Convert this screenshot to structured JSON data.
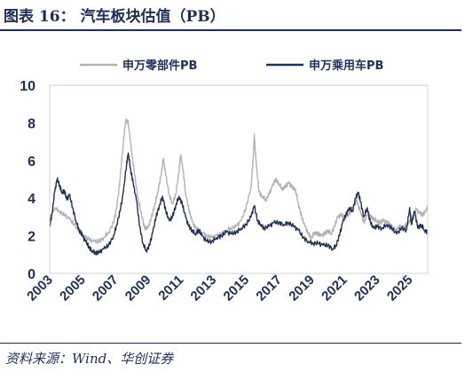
{
  "header": {
    "title": "图表 16：  汽车板块估值（PB）"
  },
  "footer": {
    "source": "资料来源：Wind、华创证券"
  },
  "colors": {
    "navy": "#1f2f57",
    "gray": "#b2b2b2"
  },
  "chart_data": {
    "type": "line",
    "ylim": [
      0,
      10
    ],
    "yticks": [
      "0",
      "2",
      "4",
      "6",
      "8",
      "10"
    ],
    "xlim": [
      2003,
      2026.1
    ],
    "xticks": [
      "2003",
      "2005",
      "2007",
      "2009",
      "2011",
      "2013",
      "2015",
      "2017",
      "2019",
      "2021",
      "2023",
      "2025"
    ],
    "legend_position": "top",
    "grid": false,
    "series": [
      {
        "name": "申万零部件PB",
        "color": "#b2b2b2",
        "points": [
          [
            2003.0,
            2.9
          ],
          [
            2003.3,
            3.5
          ],
          [
            2003.6,
            3.3
          ],
          [
            2003.9,
            3.1
          ],
          [
            2004.2,
            2.9
          ],
          [
            2004.5,
            2.6
          ],
          [
            2004.8,
            2.3
          ],
          [
            2005.1,
            2.0
          ],
          [
            2005.4,
            1.8
          ],
          [
            2005.7,
            1.7
          ],
          [
            2006.0,
            1.7
          ],
          [
            2006.3,
            1.9
          ],
          [
            2006.6,
            2.2
          ],
          [
            2006.9,
            2.7
          ],
          [
            2007.1,
            3.5
          ],
          [
            2007.3,
            5.0
          ],
          [
            2007.5,
            7.0
          ],
          [
            2007.65,
            8.2
          ],
          [
            2007.8,
            8.0
          ],
          [
            2008.0,
            6.5
          ],
          [
            2008.2,
            5.2
          ],
          [
            2008.4,
            4.0
          ],
          [
            2008.6,
            3.2
          ],
          [
            2008.8,
            2.4
          ],
          [
            2009.0,
            2.4
          ],
          [
            2009.2,
            2.9
          ],
          [
            2009.4,
            3.6
          ],
          [
            2009.6,
            4.3
          ],
          [
            2009.8,
            5.2
          ],
          [
            2009.95,
            6.1
          ],
          [
            2010.1,
            5.2
          ],
          [
            2010.3,
            4.2
          ],
          [
            2010.5,
            3.7
          ],
          [
            2010.7,
            4.2
          ],
          [
            2010.9,
            5.4
          ],
          [
            2011.0,
            6.3
          ],
          [
            2011.15,
            5.5
          ],
          [
            2011.3,
            4.3
          ],
          [
            2011.5,
            3.4
          ],
          [
            2011.7,
            2.8
          ],
          [
            2011.9,
            2.4
          ],
          [
            2012.1,
            2.3
          ],
          [
            2012.3,
            2.2
          ],
          [
            2012.6,
            2.0
          ],
          [
            2012.9,
            1.9
          ],
          [
            2013.2,
            2.0
          ],
          [
            2013.5,
            2.1
          ],
          [
            2013.8,
            2.3
          ],
          [
            2014.1,
            2.4
          ],
          [
            2014.4,
            2.5
          ],
          [
            2014.7,
            2.8
          ],
          [
            2015.0,
            3.5
          ],
          [
            2015.3,
            4.6
          ],
          [
            2015.45,
            6.3
          ],
          [
            2015.5,
            7.4
          ],
          [
            2015.6,
            6.0
          ],
          [
            2015.8,
            4.3
          ],
          [
            2016.0,
            4.1
          ],
          [
            2016.2,
            3.9
          ],
          [
            2016.4,
            4.2
          ],
          [
            2016.6,
            4.6
          ],
          [
            2016.8,
            5.0
          ],
          [
            2017.0,
            4.8
          ],
          [
            2017.2,
            4.5
          ],
          [
            2017.4,
            4.6
          ],
          [
            2017.6,
            4.8
          ],
          [
            2017.8,
            4.6
          ],
          [
            2018.0,
            4.5
          ],
          [
            2018.2,
            3.7
          ],
          [
            2018.4,
            3.0
          ],
          [
            2018.6,
            2.5
          ],
          [
            2018.8,
            2.1
          ],
          [
            2019.0,
            1.9
          ],
          [
            2019.2,
            2.2
          ],
          [
            2019.4,
            2.1
          ],
          [
            2019.6,
            2.0
          ],
          [
            2019.8,
            2.1
          ],
          [
            2020.0,
            2.3
          ],
          [
            2020.2,
            2.1
          ],
          [
            2020.4,
            2.5
          ],
          [
            2020.6,
            3.0
          ],
          [
            2020.8,
            3.1
          ],
          [
            2021.0,
            3.0
          ],
          [
            2021.2,
            3.1
          ],
          [
            2021.4,
            3.3
          ],
          [
            2021.6,
            3.6
          ],
          [
            2021.75,
            3.9
          ],
          [
            2021.9,
            3.5
          ],
          [
            2022.0,
            3.3
          ],
          [
            2022.2,
            2.7
          ],
          [
            2022.4,
            3.1
          ],
          [
            2022.6,
            3.0
          ],
          [
            2022.8,
            2.9
          ],
          [
            2023.0,
            2.8
          ],
          [
            2023.2,
            2.7
          ],
          [
            2023.4,
            2.8
          ],
          [
            2023.6,
            2.7
          ],
          [
            2023.8,
            2.6
          ],
          [
            2024.0,
            2.4
          ],
          [
            2024.2,
            2.3
          ],
          [
            2024.4,
            2.5
          ],
          [
            2024.6,
            2.4
          ],
          [
            2024.8,
            2.6
          ],
          [
            2025.0,
            2.8
          ],
          [
            2025.2,
            3.1
          ],
          [
            2025.4,
            3.4
          ],
          [
            2025.6,
            3.2
          ],
          [
            2025.8,
            3.1
          ],
          [
            2026.0,
            3.4
          ],
          [
            2026.1,
            3.5
          ]
        ]
      },
      {
        "name": "申万乘用车PB",
        "color": "#1f2f57",
        "points": [
          [
            2003.0,
            2.5
          ],
          [
            2003.15,
            3.2
          ],
          [
            2003.3,
            4.3
          ],
          [
            2003.45,
            5.0
          ],
          [
            2003.6,
            4.7
          ],
          [
            2003.75,
            4.3
          ],
          [
            2003.9,
            4.4
          ],
          [
            2004.05,
            3.9
          ],
          [
            2004.2,
            4.2
          ],
          [
            2004.4,
            3.5
          ],
          [
            2004.6,
            2.8
          ],
          [
            2004.8,
            2.3
          ],
          [
            2005.0,
            2.0
          ],
          [
            2005.2,
            1.7
          ],
          [
            2005.4,
            1.4
          ],
          [
            2005.6,
            1.2
          ],
          [
            2005.8,
            1.1
          ],
          [
            2006.0,
            1.1
          ],
          [
            2006.3,
            1.3
          ],
          [
            2006.6,
            1.5
          ],
          [
            2006.9,
            2.0
          ],
          [
            2007.1,
            2.6
          ],
          [
            2007.3,
            3.3
          ],
          [
            2007.5,
            4.3
          ],
          [
            2007.7,
            5.8
          ],
          [
            2007.8,
            6.4
          ],
          [
            2007.95,
            5.5
          ],
          [
            2008.1,
            4.8
          ],
          [
            2008.3,
            3.9
          ],
          [
            2008.5,
            2.5
          ],
          [
            2008.7,
            1.6
          ],
          [
            2008.9,
            1.2
          ],
          [
            2009.1,
            1.5
          ],
          [
            2009.3,
            2.2
          ],
          [
            2009.5,
            3.0
          ],
          [
            2009.7,
            3.6
          ],
          [
            2009.9,
            4.1
          ],
          [
            2010.1,
            3.3
          ],
          [
            2010.3,
            2.8
          ],
          [
            2010.5,
            3.0
          ],
          [
            2010.7,
            3.6
          ],
          [
            2010.9,
            4.1
          ],
          [
            2011.1,
            3.7
          ],
          [
            2011.3,
            3.0
          ],
          [
            2011.5,
            2.5
          ],
          [
            2011.7,
            2.3
          ],
          [
            2011.9,
            2.1
          ],
          [
            2012.1,
            2.3
          ],
          [
            2012.3,
            2.0
          ],
          [
            2012.6,
            1.7
          ],
          [
            2012.9,
            1.7
          ],
          [
            2013.2,
            1.9
          ],
          [
            2013.5,
            2.0
          ],
          [
            2013.8,
            2.2
          ],
          [
            2014.1,
            2.1
          ],
          [
            2014.4,
            2.2
          ],
          [
            2014.7,
            2.4
          ],
          [
            2015.0,
            2.6
          ],
          [
            2015.3,
            3.0
          ],
          [
            2015.5,
            3.6
          ],
          [
            2015.7,
            2.8
          ],
          [
            2015.9,
            2.6
          ],
          [
            2016.1,
            2.4
          ],
          [
            2016.4,
            2.5
          ],
          [
            2016.7,
            2.7
          ],
          [
            2017.0,
            2.7
          ],
          [
            2017.3,
            2.6
          ],
          [
            2017.6,
            2.7
          ],
          [
            2017.9,
            2.5
          ],
          [
            2018.2,
            2.3
          ],
          [
            2018.5,
            1.9
          ],
          [
            2018.8,
            1.7
          ],
          [
            2019.1,
            1.6
          ],
          [
            2019.4,
            1.6
          ],
          [
            2019.7,
            1.5
          ],
          [
            2020.0,
            1.5
          ],
          [
            2020.3,
            1.3
          ],
          [
            2020.5,
            1.5
          ],
          [
            2020.7,
            2.0
          ],
          [
            2020.9,
            2.7
          ],
          [
            2021.1,
            3.1
          ],
          [
            2021.3,
            3.5
          ],
          [
            2021.5,
            3.3
          ],
          [
            2021.7,
            4.0
          ],
          [
            2021.85,
            4.3
          ],
          [
            2022.0,
            3.8
          ],
          [
            2022.2,
            3.0
          ],
          [
            2022.4,
            3.5
          ],
          [
            2022.6,
            2.7
          ],
          [
            2022.8,
            2.4
          ],
          [
            2023.0,
            2.5
          ],
          [
            2023.3,
            2.4
          ],
          [
            2023.6,
            2.6
          ],
          [
            2023.9,
            2.4
          ],
          [
            2024.2,
            2.1
          ],
          [
            2024.5,
            2.4
          ],
          [
            2024.8,
            2.3
          ],
          [
            2025.0,
            3.5
          ],
          [
            2025.1,
            2.6
          ],
          [
            2025.3,
            3.3
          ],
          [
            2025.5,
            2.4
          ],
          [
            2025.7,
            2.6
          ],
          [
            2025.9,
            2.3
          ],
          [
            2026.1,
            2.2
          ]
        ]
      }
    ]
  }
}
